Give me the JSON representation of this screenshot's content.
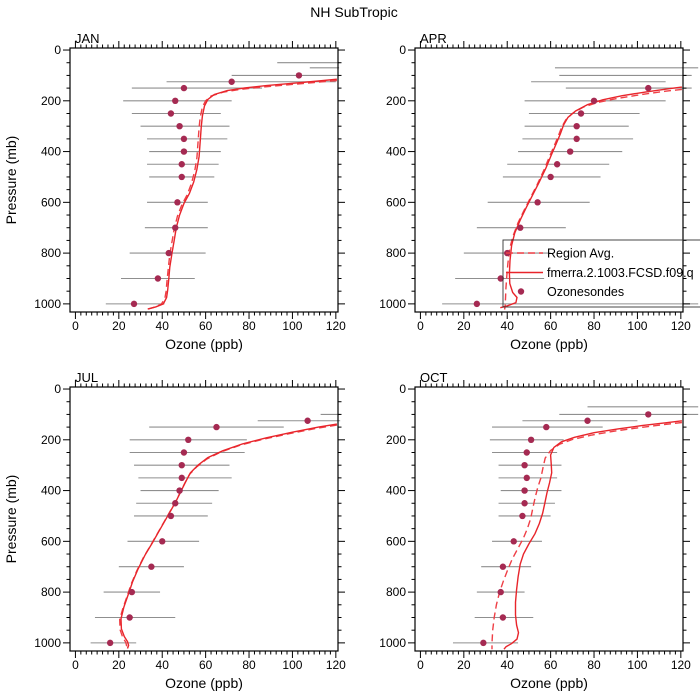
{
  "title": "NH SubTropic",
  "colors": {
    "model_line": "#e8252b",
    "region_avg_line": "#ef3f46",
    "ozonesonde_dot": "#a52a52",
    "error_bar": "#8f8f8f",
    "frame": "#000000",
    "background": "#ffffff"
  },
  "legend": {
    "items": [
      {
        "label": "Region Avg.",
        "style": "dashed-line"
      },
      {
        "label": "fmerra.2.1003.FCSD.f09.q",
        "style": "solid-line"
      },
      {
        "label": "Ozonesondes",
        "style": "dot"
      }
    ]
  },
  "axes": {
    "x_label": "Ozone (ppb)",
    "y_label": "Pressure (mb)",
    "x_ticks": [
      0,
      20,
      40,
      60,
      80,
      100,
      120
    ],
    "y_ticks": [
      0,
      200,
      400,
      600,
      800,
      1000
    ],
    "x_minor_step": 2.5,
    "y_minor_step": 50,
    "x_range": [
      0,
      120
    ],
    "y_range": [
      0,
      1000
    ],
    "y_inverted": true
  },
  "chart_data": [
    {
      "type": "line",
      "month": "JAN",
      "sondes": [
        [
          50,
          null,
          93,
          121.5
        ],
        [
          70,
          null,
          108,
          121.5
        ],
        [
          100,
          103,
          72,
          121.5
        ],
        [
          125,
          72,
          42,
          120
        ],
        [
          150,
          50,
          26,
          86
        ],
        [
          200,
          46,
          22,
          72
        ],
        [
          250,
          44,
          26,
          67
        ],
        [
          300,
          48,
          30,
          71
        ],
        [
          350,
          50,
          33,
          70
        ],
        [
          400,
          50,
          34,
          67
        ],
        [
          450,
          49,
          33,
          66
        ],
        [
          500,
          49,
          34,
          64
        ],
        [
          600,
          47,
          33,
          61
        ],
        [
          700,
          46,
          32,
          61
        ],
        [
          800,
          43,
          25,
          60
        ],
        [
          900,
          38,
          21,
          55
        ],
        [
          1000,
          27,
          14,
          41
        ]
      ],
      "model": [
        [
          120.5,
          115
        ],
        [
          112,
          122
        ],
        [
          100,
          131
        ],
        [
          88,
          140
        ],
        [
          78,
          149
        ],
        [
          70,
          160
        ],
        [
          64,
          175
        ],
        [
          61,
          195
        ],
        [
          59.5,
          220
        ],
        [
          58.5,
          260
        ],
        [
          58,
          300
        ],
        [
          57.5,
          360
        ],
        [
          57,
          420
        ],
        [
          56,
          470
        ],
        [
          54.5,
          520
        ],
        [
          52.5,
          565
        ],
        [
          50,
          605
        ],
        [
          48,
          650
        ],
        [
          46.5,
          700
        ],
        [
          45.5,
          750
        ],
        [
          44.5,
          800
        ],
        [
          43.5,
          855
        ],
        [
          43,
          905
        ],
        [
          42.5,
          945
        ],
        [
          42,
          975
        ],
        [
          40.5,
          1000
        ],
        [
          37,
          1012
        ],
        [
          33.5,
          1020
        ]
      ],
      "region_avg": [
        [
          120.5,
          120
        ],
        [
          110,
          128
        ],
        [
          98,
          137
        ],
        [
          86,
          146
        ],
        [
          76,
          155
        ],
        [
          68,
          166
        ],
        [
          62.5,
          181
        ],
        [
          60,
          200
        ],
        [
          58.5,
          225
        ],
        [
          57.5,
          265
        ],
        [
          57,
          305
        ],
        [
          56.5,
          365
        ],
        [
          56,
          425
        ],
        [
          55,
          475
        ],
        [
          53.5,
          525
        ],
        [
          51.5,
          570
        ],
        [
          49,
          610
        ],
        [
          47,
          655
        ],
        [
          45.5,
          705
        ],
        [
          44.5,
          755
        ],
        [
          43.5,
          805
        ],
        [
          42.8,
          860
        ],
        [
          42.2,
          910
        ],
        [
          41.8,
          950
        ],
        [
          41.2,
          980
        ],
        [
          39.5,
          1002
        ],
        [
          36,
          1014
        ],
        [
          32.5,
          1022
        ]
      ]
    },
    {
      "type": "line",
      "month": "APR",
      "sondes": [
        [
          70,
          null,
          62,
          128
        ],
        [
          100,
          null,
          64,
          125
        ],
        [
          125,
          null,
          51,
          113
        ],
        [
          150,
          105,
          67,
          125
        ],
        [
          200,
          80,
          48,
          113
        ],
        [
          250,
          74,
          50,
          101
        ],
        [
          300,
          72,
          48,
          96
        ],
        [
          350,
          72,
          47,
          98
        ],
        [
          400,
          69,
          45,
          93
        ],
        [
          450,
          63,
          40,
          87
        ],
        [
          500,
          60,
          38,
          83
        ],
        [
          600,
          54,
          31,
          78
        ],
        [
          700,
          46,
          26,
          67
        ],
        [
          800,
          40,
          20,
          60
        ],
        [
          900,
          37,
          16,
          57
        ],
        [
          1000,
          26,
          10,
          128
        ]
      ],
      "model": [
        [
          120.5,
          146
        ],
        [
          115,
          152
        ],
        [
          104,
          165
        ],
        [
          93,
          180
        ],
        [
          84,
          196
        ],
        [
          77,
          215
        ],
        [
          71.5,
          240
        ],
        [
          68,
          265
        ],
        [
          66,
          295
        ],
        [
          64.5,
          330
        ],
        [
          62.5,
          370
        ],
        [
          60.5,
          410
        ],
        [
          57.8,
          465
        ],
        [
          54.8,
          520
        ],
        [
          51.8,
          570
        ],
        [
          48.8,
          620
        ],
        [
          46,
          670
        ],
        [
          43.5,
          720
        ],
        [
          42,
          770
        ],
        [
          41.3,
          830
        ],
        [
          41,
          880
        ],
        [
          41.2,
          920
        ],
        [
          42.5,
          955
        ],
        [
          44.5,
          975
        ],
        [
          44,
          995
        ],
        [
          40,
          1008
        ],
        [
          36.8,
          1015
        ]
      ],
      "region_avg": [
        [
          120.5,
          155
        ],
        [
          113,
          162
        ],
        [
          102,
          175
        ],
        [
          91,
          190
        ],
        [
          82,
          206
        ],
        [
          75,
          225
        ],
        [
          70,
          250
        ],
        [
          67,
          275
        ],
        [
          65,
          305
        ],
        [
          63.5,
          340
        ],
        [
          61.5,
          380
        ],
        [
          59.5,
          420
        ],
        [
          56.8,
          475
        ],
        [
          53.8,
          530
        ],
        [
          50.8,
          580
        ],
        [
          47.8,
          630
        ],
        [
          45,
          680
        ],
        [
          42.8,
          730
        ],
        [
          41.2,
          780
        ],
        [
          40.3,
          840
        ],
        [
          39.8,
          890
        ],
        [
          39.4,
          940
        ],
        [
          39.2,
          980
        ],
        [
          39,
          1010
        ],
        [
          38.8,
          1022
        ]
      ]
    },
    {
      "type": "line",
      "month": "JUL",
      "sondes": [
        [
          100,
          null,
          113,
          122
        ],
        [
          125,
          107,
          84,
          122
        ],
        [
          150,
          65,
          34,
          96
        ],
        [
          200,
          52,
          25,
          79
        ],
        [
          250,
          50,
          25,
          78
        ],
        [
          300,
          49,
          27,
          71
        ],
        [
          350,
          49,
          29,
          72
        ],
        [
          400,
          48,
          30,
          66
        ],
        [
          450,
          46,
          28,
          63
        ],
        [
          500,
          44,
          27,
          61
        ],
        [
          600,
          40,
          24,
          57
        ],
        [
          700,
          35,
          20,
          50
        ],
        [
          800,
          26,
          13,
          39
        ],
        [
          900,
          25,
          9,
          46
        ],
        [
          1000,
          16,
          7,
          28
        ]
      ],
      "model": [
        [
          120.5,
          138
        ],
        [
          112,
          150
        ],
        [
          100,
          170
        ],
        [
          88,
          192
        ],
        [
          77,
          216
        ],
        [
          68,
          243
        ],
        [
          61,
          270
        ],
        [
          56.5,
          300
        ],
        [
          53,
          330
        ],
        [
          50.8,
          365
        ],
        [
          48.8,
          400
        ],
        [
          46.5,
          440
        ],
        [
          44,
          478
        ],
        [
          41.5,
          515
        ],
        [
          38.5,
          560
        ],
        [
          35.5,
          605
        ],
        [
          32,
          655
        ],
        [
          28.8,
          710
        ],
        [
          26.3,
          760
        ],
        [
          24.3,
          810
        ],
        [
          22.3,
          860
        ],
        [
          21,
          905
        ],
        [
          21.2,
          945
        ],
        [
          22.5,
          975
        ],
        [
          24,
          995
        ],
        [
          24.5,
          1010
        ],
        [
          24,
          1022
        ]
      ],
      "region_avg": [
        [
          120.5,
          142
        ],
        [
          111,
          155
        ],
        [
          99,
          175
        ],
        [
          87,
          197
        ],
        [
          76,
          221
        ],
        [
          67,
          248
        ],
        [
          60.5,
          276
        ],
        [
          56,
          306
        ],
        [
          52.6,
          336
        ],
        [
          50.4,
          371
        ],
        [
          48.4,
          406
        ],
        [
          46,
          446
        ],
        [
          43.5,
          484
        ],
        [
          41,
          521
        ],
        [
          38,
          566
        ],
        [
          35,
          611
        ],
        [
          31.5,
          661
        ],
        [
          28.3,
          716
        ],
        [
          25.8,
          766
        ],
        [
          23.8,
          816
        ],
        [
          21.8,
          866
        ],
        [
          20.4,
          908
        ],
        [
          20.6,
          948
        ],
        [
          21.8,
          978
        ],
        [
          23.2,
          998
        ],
        [
          23.6,
          1012
        ],
        [
          23,
          1024
        ]
      ]
    },
    {
      "type": "line",
      "month": "OCT",
      "sondes": [
        [
          70,
          null,
          77,
          128
        ],
        [
          100,
          105,
          64,
          128
        ],
        [
          125,
          77,
          47,
          100
        ],
        [
          150,
          58,
          33,
          84
        ],
        [
          200,
          51,
          32,
          66
        ],
        [
          250,
          49,
          33,
          63
        ],
        [
          300,
          48,
          36,
          65
        ],
        [
          350,
          49,
          36,
          63
        ],
        [
          400,
          48,
          37,
          65
        ],
        [
          450,
          48,
          36,
          62
        ],
        [
          500,
          47,
          36,
          60
        ],
        [
          600,
          43,
          33,
          56
        ],
        [
          700,
          38,
          28,
          51
        ],
        [
          800,
          37,
          26,
          48
        ],
        [
          900,
          38,
          25,
          52
        ],
        [
          1000,
          29,
          15,
          45
        ]
      ],
      "model": [
        [
          120.5,
          125
        ],
        [
          113,
          133
        ],
        [
          102,
          144
        ],
        [
          91,
          157
        ],
        [
          80,
          172
        ],
        [
          71,
          190
        ],
        [
          65,
          208
        ],
        [
          61.5,
          230
        ],
        [
          60,
          260
        ],
        [
          60.3,
          300
        ],
        [
          60.5,
          330
        ],
        [
          59.5,
          370
        ],
        [
          58.3,
          410
        ],
        [
          57.3,
          450
        ],
        [
          56.3,
          490
        ],
        [
          54.8,
          530
        ],
        [
          52.8,
          570
        ],
        [
          50,
          610
        ],
        [
          47.5,
          650
        ],
        [
          46,
          690
        ],
        [
          45,
          740
        ],
        [
          44.3,
          790
        ],
        [
          43.8,
          840
        ],
        [
          43.8,
          890
        ],
        [
          44.3,
          930
        ],
        [
          45.2,
          960
        ],
        [
          44.5,
          985
        ],
        [
          42,
          1003
        ],
        [
          39.5,
          1015
        ],
        [
          38.5,
          1025
        ]
      ],
      "region_avg": [
        [
          120.5,
          132
        ],
        [
          112,
          140
        ],
        [
          101,
          152
        ],
        [
          90,
          165
        ],
        [
          79,
          181
        ],
        [
          70,
          199
        ],
        [
          64,
          218
        ],
        [
          60,
          242
        ],
        [
          57.5,
          272
        ],
        [
          56.5,
          310
        ],
        [
          55.5,
          350
        ],
        [
          54,
          390
        ],
        [
          52.8,
          430
        ],
        [
          51.8,
          470
        ],
        [
          50.8,
          510
        ],
        [
          49.3,
          550
        ],
        [
          47.3,
          590
        ],
        [
          44.8,
          630
        ],
        [
          42.3,
          670
        ],
        [
          40.3,
          710
        ],
        [
          38.3,
          755
        ],
        [
          36.5,
          800
        ],
        [
          35,
          850
        ],
        [
          34,
          900
        ],
        [
          33.3,
          950
        ],
        [
          33,
          1000
        ],
        [
          33,
          1025
        ]
      ]
    }
  ]
}
